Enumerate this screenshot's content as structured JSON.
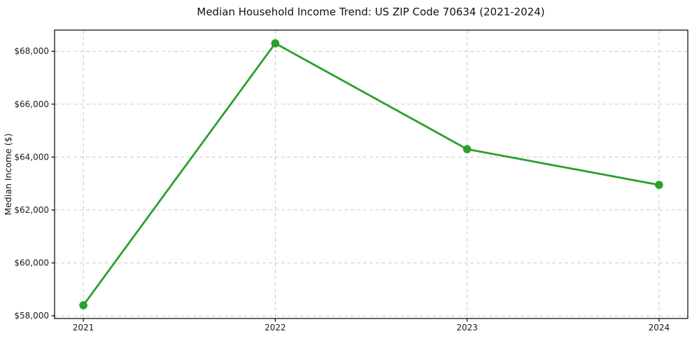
{
  "chart_data": {
    "type": "line",
    "title": "Median Household Income Trend: US ZIP Code 70634 (2021-2024)",
    "xlabel": "",
    "ylabel": "Median Income ($)",
    "x": [
      2021,
      2022,
      2023,
      2024
    ],
    "x_tick_labels": [
      "2021",
      "2022",
      "2023",
      "2024"
    ],
    "series": [
      {
        "name": "Median Household Income",
        "values": [
          58400,
          68300,
          64300,
          62950
        ]
      }
    ],
    "y_ticks": [
      58000,
      60000,
      62000,
      64000,
      66000,
      68000
    ],
    "y_tick_labels": [
      "$58,000",
      "$60,000",
      "$62,000",
      "$64,000",
      "$66,000",
      "$68,000"
    ],
    "xlim": [
      2020.85,
      2024.15
    ],
    "ylim": [
      57900,
      68800
    ],
    "grid": true,
    "grid_style": "dashed",
    "legend": "none",
    "line_color": "#2ca02c",
    "marker_color": "#2ca02c",
    "grid_color": "#c9c9c9",
    "spine_color": "#000000",
    "text_color": "#111111",
    "background_color": "#ffffff"
  }
}
